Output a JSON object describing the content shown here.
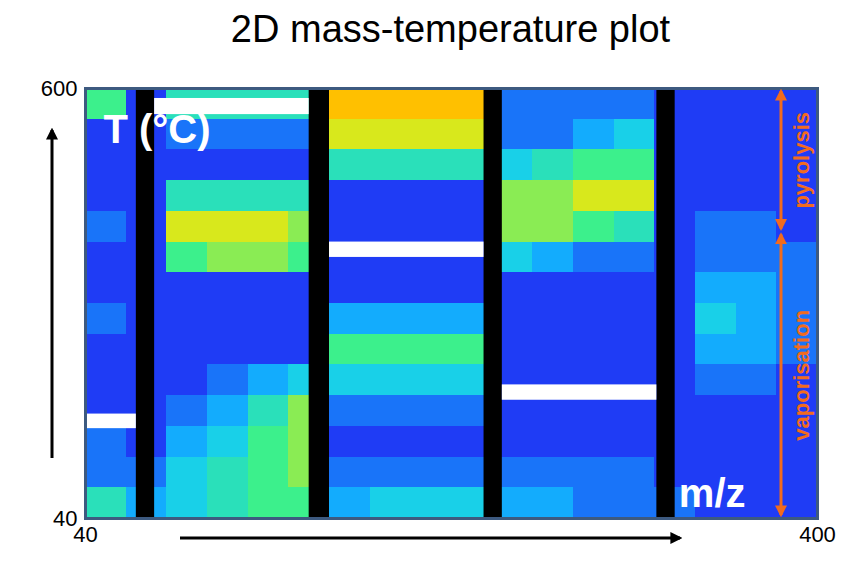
{
  "chart_data": {
    "type": "heatmap",
    "title": "2D mass-temperature plot",
    "x_label": "m/z",
    "y_label": "T (°C)",
    "xlim": [
      40,
      400
    ],
    "ylim": [
      40,
      600
    ],
    "xticks": [
      40,
      400
    ],
    "yticks": [
      40,
      600
    ],
    "x_bins": [
      40,
      60,
      80,
      100,
      120,
      140,
      160,
      180,
      200,
      220,
      240,
      260,
      280,
      300,
      320,
      340,
      360,
      380,
      400
    ],
    "y_bins": [
      40,
      80,
      120,
      160,
      200,
      240,
      280,
      320,
      360,
      400,
      440,
      480,
      520,
      560,
      600
    ],
    "values": [
      [
        4,
        2,
        3,
        4,
        5,
        5,
        2,
        3,
        3,
        3,
        2,
        2,
        1,
        1,
        1,
        0,
        0,
        0
      ],
      [
        1,
        1,
        3,
        4,
        5,
        6,
        1,
        1,
        1,
        1,
        1,
        1,
        1,
        1,
        0,
        0,
        0,
        0
      ],
      [
        1,
        0,
        2,
        3,
        5,
        6,
        0,
        0,
        0,
        0,
        0,
        0,
        0,
        0,
        0,
        0,
        0,
        0
      ],
      [
        0,
        0,
        1,
        2,
        4,
        6,
        1,
        1,
        1,
        1,
        0,
        0,
        0,
        0,
        0,
        0,
        0,
        0
      ],
      [
        0,
        0,
        0,
        1,
        2,
        3,
        3,
        3,
        3,
        3,
        0,
        0,
        0,
        0,
        0,
        1,
        1,
        0
      ],
      [
        0,
        0,
        0,
        0,
        0,
        0,
        5,
        5,
        5,
        5,
        0,
        0,
        0,
        0,
        0,
        2,
        2,
        1
      ],
      [
        1,
        0,
        0,
        0,
        0,
        0,
        2,
        2,
        2,
        2,
        0,
        0,
        0,
        0,
        0,
        3,
        2,
        1
      ],
      [
        0,
        0,
        0,
        0,
        0,
        0,
        0,
        0,
        0,
        0,
        0,
        0,
        0,
        0,
        0,
        2,
        2,
        1
      ],
      [
        0,
        0,
        5,
        6,
        6,
        5,
        0,
        0,
        0,
        0,
        3,
        2,
        1,
        1,
        0,
        1,
        1,
        1
      ],
      [
        1,
        0,
        7,
        7,
        7,
        6,
        0,
        0,
        0,
        0,
        6,
        6,
        5,
        4,
        0,
        1,
        1,
        0
      ],
      [
        0,
        0,
        4,
        4,
        4,
        4,
        0,
        0,
        0,
        0,
        6,
        6,
        7,
        7,
        0,
        0,
        0,
        0
      ],
      [
        0,
        0,
        0,
        0,
        0,
        0,
        4,
        4,
        4,
        4,
        3,
        4,
        5,
        5,
        0,
        0,
        0,
        0
      ],
      [
        0,
        0,
        1,
        1,
        1,
        1,
        7,
        7,
        7,
        7,
        1,
        1,
        2,
        3,
        0,
        0,
        0,
        0
      ],
      [
        5,
        0,
        4,
        4,
        4,
        4,
        8,
        8,
        8,
        8,
        1,
        1,
        1,
        1,
        0,
        0,
        0,
        0
      ]
    ],
    "color_range": [
      0,
      10
    ],
    "dividers": [
      [
        65,
        74
      ],
      [
        150,
        160
      ],
      [
        236,
        245
      ],
      [
        321,
        330
      ]
    ],
    "white_bars": [
      {
        "x": [
          40,
          65
        ],
        "y": [
          157,
          176
        ]
      },
      {
        "x": [
          74,
          150
        ],
        "y": [
          566,
          587
        ]
      },
      {
        "x": [
          160,
          236
        ],
        "y": [
          380,
          400
        ]
      },
      {
        "x": [
          245,
          321
        ],
        "y": [
          194,
          214
        ]
      }
    ],
    "annotations": [
      {
        "text": "vaporisation",
        "y": [
          40,
          413
        ]
      },
      {
        "text": "pyrolysis",
        "y": [
          413,
          600
        ]
      }
    ]
  }
}
